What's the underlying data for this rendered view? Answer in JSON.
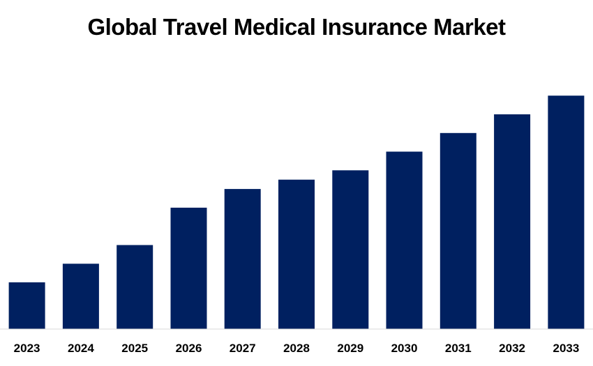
{
  "chart_data": {
    "type": "bar",
    "title": "Global Travel Medical Insurance Market",
    "xlabel": "",
    "ylabel": "",
    "categories": [
      "2023",
      "2024",
      "2025",
      "2026",
      "2027",
      "2028",
      "2029",
      "2030",
      "2031",
      "2032",
      "2033"
    ],
    "values": [
      12.5,
      17.5,
      22.5,
      32.5,
      37.5,
      40,
      42.5,
      47.5,
      52.5,
      57.5,
      62.5
    ],
    "ylim": [
      0,
      70
    ],
    "grid": false,
    "legend": "none",
    "bar_color": "#002060",
    "axis_color": "#d9d9d9"
  }
}
